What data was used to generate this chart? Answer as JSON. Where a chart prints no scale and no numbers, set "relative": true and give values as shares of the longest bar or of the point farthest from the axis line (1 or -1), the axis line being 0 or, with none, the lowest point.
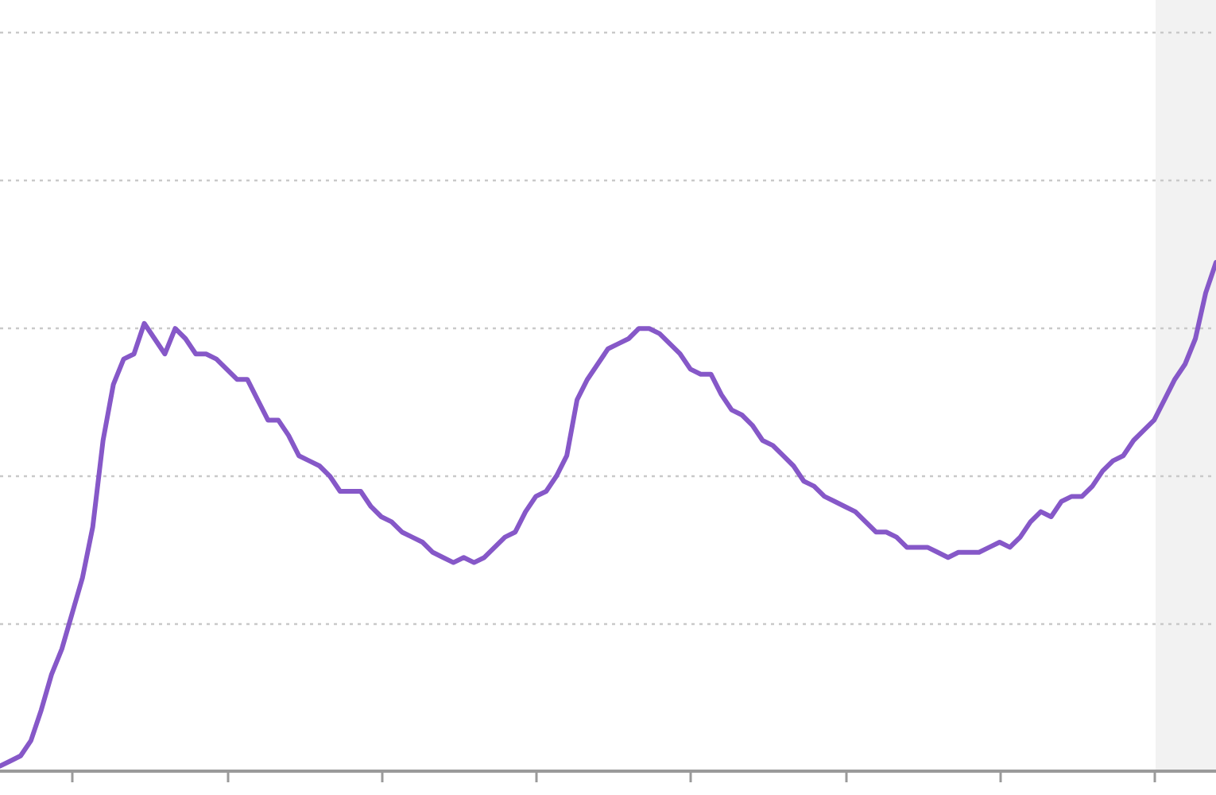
{
  "chart_data": {
    "type": "line",
    "relative": true,
    "categories": [
      null,
      null,
      null,
      null,
      null,
      null,
      null,
      null,
      null,
      null,
      null,
      null,
      null,
      null,
      null,
      null,
      null,
      null,
      null,
      null,
      null,
      null,
      null,
      null,
      null,
      null,
      null,
      null,
      null,
      null,
      null,
      null,
      null,
      null,
      null,
      null,
      null,
      null,
      null,
      null,
      null,
      null,
      null,
      null,
      null,
      null,
      null,
      null,
      null,
      null,
      null,
      null,
      null,
      null,
      null,
      null,
      null,
      null,
      null,
      null,
      null,
      null,
      null,
      null,
      null,
      null,
      null,
      null,
      null,
      null,
      null,
      null,
      null,
      null,
      null,
      null,
      null,
      null,
      null,
      null,
      null,
      null,
      null,
      null,
      null,
      null,
      null,
      null,
      null,
      null,
      null,
      null,
      null,
      null,
      null,
      null,
      null,
      null,
      null,
      null,
      null,
      null,
      null,
      null,
      null,
      null,
      null,
      null,
      null,
      null,
      null,
      null,
      null,
      null,
      null,
      null,
      null,
      null,
      null
    ],
    "series": [
      {
        "color": "#8658c8",
        "values": [
          0.01,
          0.02,
          0.03,
          0.06,
          0.12,
          0.19,
          0.24,
          0.31,
          0.38,
          0.48,
          0.65,
          0.76,
          0.81,
          0.82,
          0.88,
          0.85,
          0.82,
          0.87,
          0.85,
          0.82,
          0.82,
          0.81,
          0.79,
          0.77,
          0.77,
          0.73,
          0.69,
          0.69,
          0.66,
          0.62,
          0.61,
          0.6,
          0.58,
          0.55,
          0.55,
          0.55,
          0.52,
          0.5,
          0.49,
          0.47,
          0.46,
          0.45,
          0.43,
          0.42,
          0.41,
          0.42,
          0.41,
          0.42,
          0.44,
          0.46,
          0.47,
          0.51,
          0.54,
          0.55,
          0.58,
          0.62,
          0.73,
          0.77,
          0.8,
          0.83,
          0.84,
          0.85,
          0.87,
          0.87,
          0.86,
          0.84,
          0.82,
          0.79,
          0.78,
          0.78,
          0.74,
          0.71,
          0.7,
          0.68,
          0.65,
          0.64,
          0.62,
          0.6,
          0.57,
          0.56,
          0.54,
          0.53,
          0.52,
          0.51,
          0.49,
          0.47,
          0.47,
          0.46,
          0.44,
          0.44,
          0.44,
          0.43,
          0.42,
          0.43,
          0.43,
          0.43,
          0.44,
          0.45,
          0.44,
          0.46,
          0.49,
          0.51,
          0.5,
          0.53,
          0.54,
          0.54,
          0.56,
          0.59,
          0.61,
          0.62,
          0.65,
          0.67,
          0.69,
          0.73,
          0.77,
          0.8,
          0.85,
          0.94,
          1
        ]
      }
    ],
    "grid": "y",
    "marker": "none",
    "line_style": "solid"
  }
}
